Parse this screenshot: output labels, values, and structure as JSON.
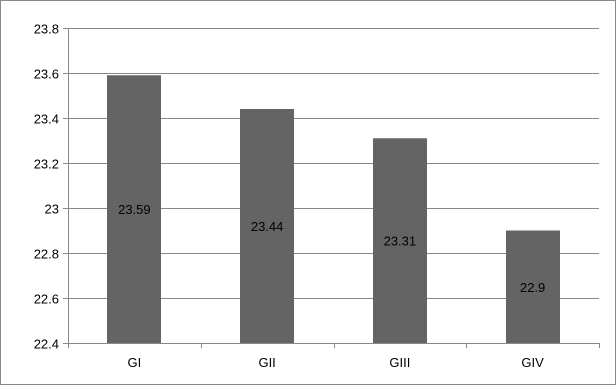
{
  "chart_data": {
    "type": "bar",
    "categories": [
      "GI",
      "GII",
      "GIII",
      "GIV"
    ],
    "values": [
      23.59,
      23.44,
      23.31,
      22.9
    ],
    "data_labels": [
      "23.59",
      "23.44",
      "23.31",
      "22.9"
    ],
    "title": "",
    "xlabel": "",
    "ylabel": "",
    "ylim": [
      22.4,
      23.8
    ],
    "yticks": [
      22.4,
      22.6,
      22.8,
      23,
      23.2,
      23.4,
      23.6,
      23.8
    ],
    "ytick_labels": [
      "22.4",
      "22.6",
      "22.8",
      "23",
      "23.2",
      "23.4",
      "23.6",
      "23.8"
    ],
    "grid": true,
    "legend": "none",
    "colors": {
      "bar": "#646464",
      "grid": "#888888",
      "axis": "#888888"
    }
  }
}
